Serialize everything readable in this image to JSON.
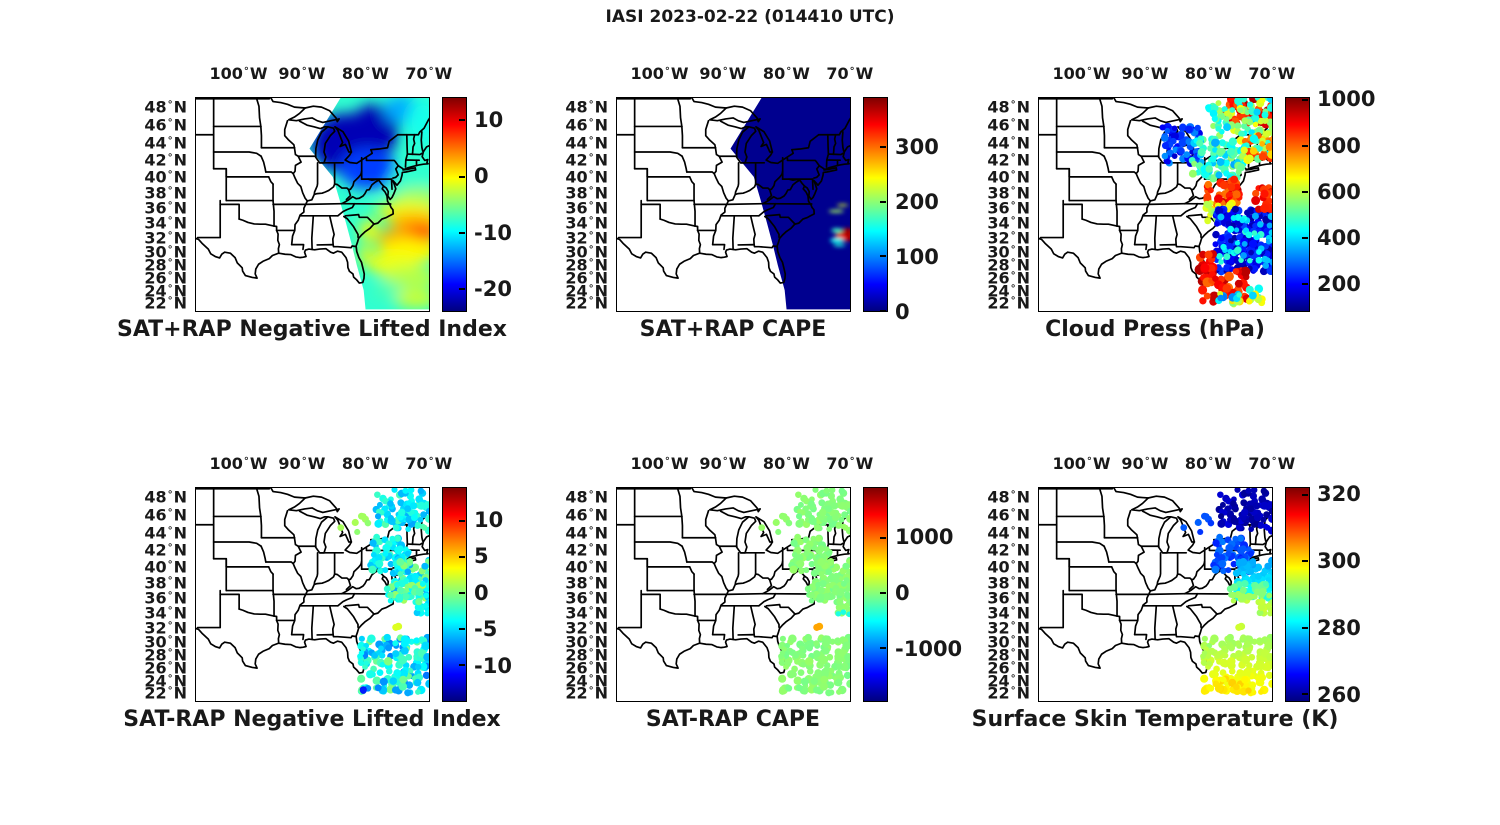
{
  "figure_title": "IASI 2023-02-22 (014410 UTC)",
  "axes": {
    "lon_ticks": [
      100,
      90,
      80,
      70
    ],
    "lon_unit": "W",
    "lat_ticks": [
      48,
      46,
      44,
      42,
      40,
      38,
      36,
      34,
      32,
      30,
      28,
      26,
      24,
      22
    ],
    "lat_unit": "N"
  },
  "colors": {
    "text": "#191919",
    "map_line": "#000000",
    "background": "#ffffff",
    "colormap_low": "#00007f",
    "colormap_high": "#7f0000"
  },
  "map_extent": {
    "lat": [
      21,
      49.4
    ],
    "lon": [
      -107,
      -69.4
    ]
  },
  "swath_polygon_latlon": [
    [
      43.4,
      -88.8
    ],
    [
      49.4,
      -83.6
    ],
    [
      49.4,
      -69.3
    ],
    [
      20.7,
      -69.3
    ],
    [
      20.7,
      -79.9
    ],
    [
      24,
      -80.2
    ],
    [
      28,
      -81.3
    ],
    [
      31,
      -82.1
    ],
    [
      34,
      -83.0
    ],
    [
      37,
      -84.0
    ],
    [
      40,
      -85.1
    ],
    [
      43.4,
      -88.8
    ]
  ],
  "retrieval_clusters": [
    {
      "n": 90,
      "lat": [
        44.3,
        49.0
      ],
      "lon": [
        -78.2,
        -69.6
      ],
      "r": [
        2.8,
        4.2
      ],
      "seed": 101
    },
    {
      "n": 7,
      "lat": [
        43.2,
        46.2
      ],
      "lon": [
        -84.8,
        -78.8
      ],
      "r": [
        3.0,
        3.8
      ],
      "seed": 102
    },
    {
      "n": 70,
      "lat": [
        39.4,
        43.6
      ],
      "lon": [
        -79.2,
        -72.8
      ],
      "r": [
        2.8,
        4.2
      ],
      "seed": 103
    },
    {
      "n": 90,
      "lat": [
        36.0,
        40.8
      ],
      "lon": [
        -75.5,
        -69.6
      ],
      "r": [
        2.8,
        4.2
      ],
      "seed": 104
    },
    {
      "n": 12,
      "lat": [
        33.8,
        35.6
      ],
      "lon": [
        -71.8,
        -69.6
      ],
      "r": [
        2.8,
        3.8
      ],
      "seed": 105
    },
    {
      "n": 3,
      "lat": [
        32.0,
        32.7
      ],
      "lon": [
        -75.2,
        -74.3
      ],
      "r": [
        3.2,
        3.8
      ],
      "seed": 106
    },
    {
      "n": 140,
      "lat": [
        21.8,
        30.6
      ],
      "lon": [
        -80.6,
        -69.6
      ],
      "r": [
        2.8,
        4.4
      ],
      "seed": 107
    },
    {
      "n": 10,
      "lat": [
        25.8,
        29.6
      ],
      "lon": [
        -81.2,
        -79.7
      ],
      "r": [
        2.6,
        3.4
      ],
      "seed": 108
    },
    {
      "n": 40,
      "lat": [
        35.3,
        38.0
      ],
      "lon": [
        -76.5,
        -70.0
      ],
      "r": [
        2.8,
        4.0
      ],
      "seed": 109
    }
  ],
  "chart_data": [
    {
      "id": "sat_plus_rap_negative_lifted_index",
      "row": 0,
      "col": 0,
      "type": "map-field",
      "title": "SAT+RAP Negative Lifted Index",
      "colorbar": {
        "colormap": "jet",
        "vmin": -24,
        "vmax": 14,
        "ticks": [
          10,
          0,
          -10,
          -20
        ]
      },
      "field": {
        "background_value": -8,
        "blur": 7,
        "blobs": [
          [
            44.0,
            -83.0,
            3.5,
            5.5,
            -22
          ],
          [
            45.5,
            -78.5,
            3.0,
            4.0,
            -22
          ],
          [
            41.0,
            -79.5,
            2.5,
            4.5,
            -17
          ],
          [
            47.8,
            -74.0,
            1.5,
            3.0,
            -13
          ],
          [
            46.5,
            -70.8,
            2.5,
            2.5,
            -9
          ],
          [
            39.5,
            -72.0,
            2.0,
            4.0,
            -8
          ],
          [
            37.3,
            -71.5,
            1.5,
            4.0,
            -4
          ],
          [
            35.8,
            -73.5,
            1.2,
            5.0,
            -1
          ],
          [
            34.5,
            -72.0,
            1.2,
            4.5,
            2
          ],
          [
            32.6,
            -71.8,
            1.6,
            3.8,
            4.5
          ],
          [
            32.8,
            -70.8,
            1.2,
            2.2,
            6
          ],
          [
            31.8,
            -75.0,
            1.5,
            3.0,
            3
          ],
          [
            30.0,
            -73.0,
            1.8,
            5.0,
            0
          ],
          [
            28.0,
            -75.5,
            1.8,
            4.0,
            -1
          ],
          [
            26.0,
            -72.5,
            1.8,
            4.5,
            -3
          ],
          [
            23.8,
            -76.3,
            1.4,
            2.5,
            -7
          ],
          [
            22.5,
            -71.8,
            1.5,
            3.5,
            -2
          ],
          [
            33.0,
            -79.3,
            1.5,
            1.5,
            0
          ],
          [
            29.5,
            -79.9,
            1.5,
            1.0,
            0
          ]
        ]
      }
    },
    {
      "id": "sat_plus_rap_cape",
      "row": 0,
      "col": 1,
      "type": "map-field",
      "title": "SAT+RAP CAPE",
      "colorbar": {
        "colormap": "jet",
        "vmin": 0,
        "vmax": 390,
        "ticks": [
          300,
          200,
          100,
          0
        ]
      },
      "field": {
        "background_value": 6,
        "blur": 2.2,
        "blobs": [
          [
            32.4,
            -70.3,
            0.9,
            1.7,
            375
          ],
          [
            31.9,
            -71.3,
            0.5,
            1.0,
            340
          ],
          [
            31.6,
            -71.9,
            0.35,
            1.1,
            150
          ],
          [
            33.0,
            -71.9,
            0.3,
            0.9,
            170
          ],
          [
            35.6,
            -72.0,
            0.2,
            1.2,
            210
          ],
          [
            36.4,
            -71.0,
            0.15,
            0.9,
            230
          ],
          [
            30.9,
            -71.5,
            0.2,
            1.0,
            160
          ]
        ]
      }
    },
    {
      "id": "cloud_press",
      "row": 0,
      "col": 2,
      "type": "map-scatter",
      "title": "Cloud Press (hPa)",
      "colorbar": {
        "colormap": "jet",
        "vmin": 80,
        "vmax": 1010,
        "ticks": [
          1000,
          800,
          600,
          400,
          200
        ]
      },
      "clusters": [
        {
          "n": 60,
          "lat": [
            46.2,
            49.2
          ],
          "lon": [
            -77.5,
            -69.6
          ],
          "v": [
            800,
            980
          ],
          "r": [
            3.0,
            4.6
          ],
          "seed": 201
        },
        {
          "n": 80,
          "lat": [
            44.8,
            49.2
          ],
          "lon": [
            -80.3,
            -69.6
          ],
          "v": [
            380,
            660
          ],
          "r": [
            2.8,
            4.2
          ],
          "seed": 202
        },
        {
          "n": 70,
          "lat": [
            41.6,
            45.9
          ],
          "lon": [
            -87.3,
            -81.3
          ],
          "v": [
            150,
            330
          ],
          "r": [
            2.8,
            4.2
          ],
          "seed": 203
        },
        {
          "n": 90,
          "lat": [
            39.8,
            44.6
          ],
          "lon": [
            -82.6,
            -74.2
          ],
          "v": [
            350,
            570
          ],
          "r": [
            2.8,
            4.2
          ],
          "seed": 204
        },
        {
          "n": 50,
          "lat": [
            42.0,
            45.2
          ],
          "lon": [
            -74.8,
            -69.6
          ],
          "v": [
            420,
            850
          ],
          "r": [
            2.8,
            4.4
          ],
          "seed": 205
        },
        {
          "n": 45,
          "lat": [
            36.3,
            39.7
          ],
          "lon": [
            -80.2,
            -75.0
          ],
          "v": [
            770,
            960
          ],
          "r": [
            3.0,
            4.6
          ],
          "seed": 206
        },
        {
          "n": 35,
          "lat": [
            34.3,
            36.7
          ],
          "lon": [
            -81.0,
            -76.0
          ],
          "v": [
            560,
            700
          ],
          "r": [
            2.8,
            4.2
          ],
          "seed": 207
        },
        {
          "n": 220,
          "lat": [
            27.0,
            35.9
          ],
          "lon": [
            -78.9,
            -69.6
          ],
          "v": [
            110,
            260
          ],
          "r": [
            2.8,
            4.4
          ],
          "seed": 208
        },
        {
          "n": 45,
          "lat": [
            27.5,
            35.2
          ],
          "lon": [
            -78.2,
            -69.6
          ],
          "v": [
            330,
            480
          ],
          "r": [
            2.6,
            3.6
          ],
          "seed": 209
        },
        {
          "n": 18,
          "lat": [
            35.8,
            38.7
          ],
          "lon": [
            -72.6,
            -69.6
          ],
          "v": [
            800,
            960
          ],
          "r": [
            3.2,
            4.8
          ],
          "seed": 210
        },
        {
          "n": 22,
          "lat": [
            25.0,
            29.8
          ],
          "lon": [
            -81.3,
            -79.0
          ],
          "v": [
            820,
            980
          ],
          "r": [
            3.4,
            5.2
          ],
          "seed": 211
        },
        {
          "n": 40,
          "lat": [
            22.0,
            27.2
          ],
          "lon": [
            -80.9,
            -73.8
          ],
          "v": [
            780,
            980
          ],
          "r": [
            3.2,
            5.2
          ],
          "seed": 212
        },
        {
          "n": 30,
          "lat": [
            21.6,
            24.4
          ],
          "lon": [
            -78.6,
            -71.4
          ],
          "v": [
            300,
            720
          ],
          "r": [
            2.8,
            4.4
          ],
          "seed": 213
        }
      ]
    },
    {
      "id": "sat_minus_rap_negative_lifted_index",
      "row": 1,
      "col": 0,
      "type": "map-scatter",
      "title": "SAT-RAP Negative Lifted Index",
      "colorbar": {
        "colormap": "jet",
        "vmin": -15,
        "vmax": 14.5,
        "ticks": [
          10,
          5,
          0,
          -5,
          -10
        ]
      },
      "use_shared_geometry": true,
      "cluster_values": [
        [
          -6.5,
          -1.5
        ],
        [
          -0.5,
          1
        ],
        [
          -6,
          -2
        ],
        [
          -7,
          0.5
        ],
        [
          -6,
          -3
        ],
        [
          1.5,
          2.5
        ],
        [
          -8,
          0
        ],
        [
          -5,
          -2
        ],
        [
          -4,
          1.5
        ]
      ],
      "extra_clusters": [
        {
          "n": 2,
          "lat": [
            22.1,
            22.5
          ],
          "lon": [
            -80.4,
            -80.0
          ],
          "v": [
            -11,
            -10.5
          ],
          "r": [
            3.2,
            3.6
          ],
          "seed": 150
        }
      ]
    },
    {
      "id": "sat_minus_rap_cape",
      "row": 1,
      "col": 1,
      "type": "map-scatter",
      "title": "SAT-RAP CAPE",
      "colorbar": {
        "colormap": "jet",
        "vmin": -1950,
        "vmax": 1900,
        "ticks": [
          1000,
          0,
          -1000
        ]
      },
      "use_shared_geometry": true,
      "cluster_values": [
        [
          -70,
          70
        ],
        [
          -70,
          70
        ],
        [
          -70,
          70
        ],
        [
          -70,
          70
        ],
        [
          -70,
          70
        ],
        [
          680,
          800
        ],
        [
          -70,
          70
        ],
        [
          -70,
          70
        ],
        [
          -70,
          70
        ]
      ],
      "extra_clusters": [
        {
          "n": 3,
          "lat": [
            33.8,
            34.2
          ],
          "lon": [
            -72.0,
            -69.8
          ],
          "v": [
            -420,
            -370
          ],
          "r": [
            2.6,
            3.0
          ],
          "seed": 151
        }
      ]
    },
    {
      "id": "surface_skin_temperature",
      "row": 1,
      "col": 2,
      "type": "map-scatter",
      "title": "Surface Skin Temperature (K)",
      "colorbar": {
        "colormap": "jet",
        "vmin": 258,
        "vmax": 322,
        "ticks": [
          320,
          300,
          280,
          260
        ]
      },
      "use_shared_geometry": true,
      "cluster_values": [
        [
          259,
          264
        ],
        [
          267,
          272
        ],
        [
          268,
          274
        ],
        [
          276,
          284
        ],
        [
          291,
          295
        ],
        [
          292,
          295
        ],
        [
          292,
          299
        ],
        [
          291,
          295
        ],
        [
          287,
          295
        ]
      ],
      "lat_grad_clusters": [
        3,
        6,
        8
      ],
      "extra_clusters": [
        {
          "n": 22,
          "lat": [
            21.8,
            24.6
          ],
          "lon": [
            -79.2,
            -73.0
          ],
          "v": [
            297,
            301
          ],
          "r": [
            3.0,
            4.2
          ],
          "seed": 152
        }
      ]
    }
  ]
}
